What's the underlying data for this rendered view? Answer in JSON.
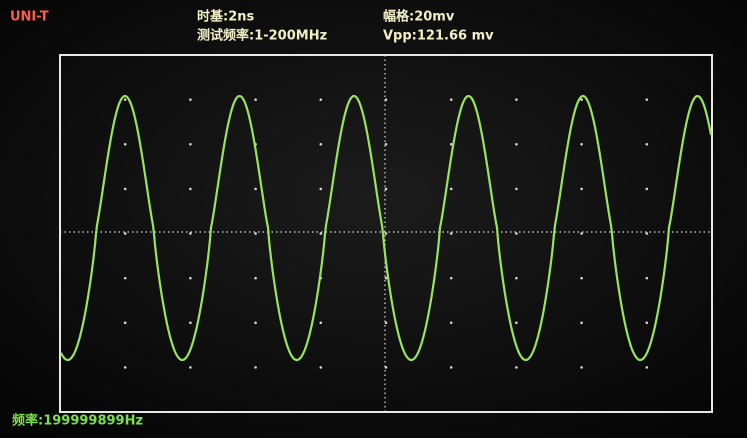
{
  "header": {
    "brand": "UNI-T",
    "timebase": "时基:2ns",
    "test_frequency": "测试频率:1-200MHz",
    "scale": "幅格:20mv",
    "vpp": "Vpp:121.66 mv"
  },
  "footer": {
    "frequency": "频率:199999899Hz"
  }
}
